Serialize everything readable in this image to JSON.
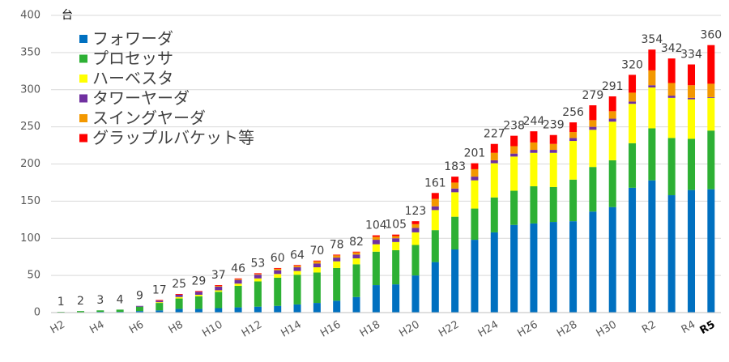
{
  "chart_data": {
    "type": "stacked_bar",
    "y_unit": "台",
    "categories": [
      "H2",
      null,
      "H4",
      null,
      "H6",
      null,
      "H8",
      null,
      "H10",
      null,
      "H12",
      null,
      "H14",
      null,
      "H16",
      null,
      "H18",
      null,
      "H20",
      null,
      "H22",
      null,
      "H24",
      null,
      "H26",
      null,
      "H28",
      null,
      "H30",
      null,
      "R2",
      null,
      "R4",
      "R5"
    ],
    "series": [
      {
        "name": "フォワーダ",
        "color": "#0070c0",
        "values": [
          0,
          0,
          1,
          1,
          2,
          3,
          5,
          5,
          6,
          7,
          8,
          9,
          11,
          13,
          16,
          21,
          37,
          38,
          50,
          68,
          85,
          98,
          108,
          118,
          120,
          122,
          123,
          136,
          142,
          168,
          178,
          158,
          165,
          166
        ]
      },
      {
        "name": "プロセッサ",
        "color": "#2db034",
        "values": [
          1,
          2,
          2,
          3,
          6,
          10,
          14,
          17,
          22,
          29,
          34,
          38,
          40,
          41,
          44,
          44,
          45,
          46,
          41,
          43,
          44,
          42,
          47,
          46,
          50,
          47,
          56,
          60,
          63,
          60,
          70,
          77,
          69,
          79
        ]
      },
      {
        "name": "ハーベスタ",
        "color": "#ffff00",
        "values": [
          0,
          0,
          0,
          0,
          0,
          1,
          2,
          2,
          2,
          3,
          4,
          5,
          5,
          7,
          9,
          8,
          10,
          11,
          17,
          27,
          33,
          38,
          46,
          46,
          45,
          46,
          52,
          50,
          52,
          53,
          55,
          54,
          53,
          44
        ]
      },
      {
        "name": "タワーヤーダ",
        "color": "#7030a0",
        "values": [
          0,
          0,
          0,
          0,
          1,
          2,
          3,
          4,
          5,
          5,
          5,
          5,
          5,
          5,
          5,
          5,
          6,
          5,
          6,
          5,
          5,
          5,
          4,
          4,
          4,
          4,
          4,
          4,
          4,
          3,
          3,
          3,
          2,
          1
        ]
      },
      {
        "name": "スイングヤーダ",
        "color": "#f39800",
        "values": [
          0,
          0,
          0,
          0,
          0,
          0,
          0,
          0,
          1,
          1,
          1,
          2,
          2,
          3,
          3,
          3,
          4,
          3,
          5,
          10,
          8,
          10,
          10,
          10,
          10,
          8,
          8,
          9,
          10,
          12,
          20,
          17,
          17,
          18
        ]
      },
      {
        "name": "グラップルバケット等",
        "color": "#ff0000",
        "values": [
          0,
          0,
          0,
          0,
          0,
          1,
          1,
          1,
          1,
          1,
          1,
          1,
          1,
          1,
          1,
          1,
          2,
          2,
          4,
          8,
          8,
          8,
          12,
          14,
          15,
          12,
          13,
          20,
          20,
          24,
          28,
          33,
          28,
          52
        ]
      }
    ],
    "totals": [
      1,
      2,
      3,
      4,
      9,
      17,
      25,
      29,
      37,
      46,
      53,
      60,
      64,
      70,
      78,
      82,
      104,
      105,
      123,
      161,
      183,
      201,
      227,
      238,
      244,
      239,
      256,
      279,
      291,
      320,
      354,
      342,
      334,
      360
    ],
    "ylim": [
      0,
      400
    ],
    "yticks": [
      0,
      50,
      100,
      150,
      200,
      250,
      300,
      350,
      400
    ],
    "grid": true,
    "legend": "upper left"
  }
}
